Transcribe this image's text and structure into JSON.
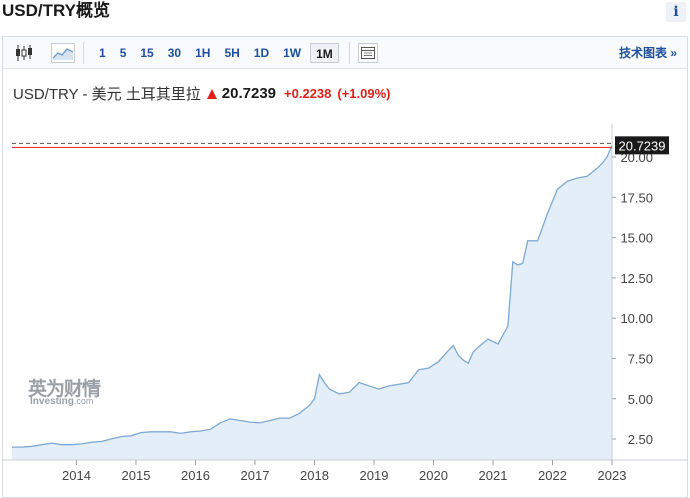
{
  "page": {
    "title": "USD/TRY概览",
    "info_label": "i"
  },
  "toolbar": {
    "timeframes": [
      "1",
      "5",
      "15",
      "30",
      "1H",
      "5H",
      "1D",
      "1W",
      "1M"
    ],
    "active_timeframe": "1M",
    "tech_chart_label": "技术图表 »"
  },
  "quote": {
    "name": "USD/TRY - 美元 土耳其里拉",
    "price": "20.7239",
    "change": "+0.2238",
    "change_pct": "(+1.09%)"
  },
  "watermark": {
    "cn": "英为财情",
    "en": "Investing",
    "en_suffix": ".com"
  },
  "colors": {
    "up": "#e0201c",
    "line": "#7fa9d3",
    "fill": "#e3eef8",
    "link": "#1f4f9c"
  },
  "chart_data": {
    "type": "area",
    "title": "",
    "xlabel": "",
    "ylabel": "",
    "x_ticks": [
      "2014",
      "2015",
      "2016",
      "2017",
      "2018",
      "2019",
      "2020",
      "2021",
      "2022",
      "2023"
    ],
    "y_ticks": [
      "2.50",
      "5.00",
      "7.50",
      "10.00",
      "12.50",
      "15.00",
      "17.50",
      "20.00"
    ],
    "ylim": [
      1.2,
      21.8
    ],
    "xlim": [
      "2013-06",
      "2023-07"
    ],
    "last_price_label": "20.7239",
    "last_price": 20.7239,
    "grid": false,
    "x": [
      "2013-06",
      "2013-08",
      "2013-10",
      "2013-12",
      "2014-02",
      "2014-04",
      "2014-06",
      "2014-08",
      "2014-10",
      "2014-12",
      "2015-02",
      "2015-04",
      "2015-06",
      "2015-08",
      "2015-10",
      "2015-12",
      "2016-02",
      "2016-04",
      "2016-06",
      "2016-08",
      "2016-10",
      "2016-12",
      "2017-02",
      "2017-04",
      "2017-06",
      "2017-08",
      "2017-10",
      "2017-12",
      "2018-02",
      "2018-04",
      "2018-06",
      "2018-07",
      "2018-08",
      "2018-09",
      "2018-10",
      "2018-12",
      "2019-02",
      "2019-04",
      "2019-06",
      "2019-08",
      "2019-10",
      "2019-12",
      "2020-02",
      "2020-04",
      "2020-06",
      "2020-08",
      "2020-10",
      "2020-11",
      "2020-12",
      "2021-01",
      "2021-02",
      "2021-03",
      "2021-04",
      "2021-06",
      "2021-08",
      "2021-10",
      "2021-11",
      "2021-12",
      "2022-01",
      "2022-02",
      "2022-04",
      "2022-06",
      "2022-08",
      "2022-10",
      "2022-12",
      "2023-02",
      "2023-04",
      "2023-05",
      "2023-06",
      "2023-07"
    ],
    "values": [
      2.0,
      2.0,
      2.05,
      2.15,
      2.25,
      2.15,
      2.15,
      2.2,
      2.3,
      2.35,
      2.5,
      2.65,
      2.7,
      2.9,
      2.95,
      2.95,
      2.95,
      2.85,
      2.95,
      3.0,
      3.1,
      3.5,
      3.75,
      3.65,
      3.55,
      3.5,
      3.65,
      3.8,
      3.8,
      4.1,
      4.6,
      5.0,
      6.5,
      6.0,
      5.6,
      5.3,
      5.4,
      6.0,
      5.8,
      5.6,
      5.8,
      5.9,
      6.0,
      6.8,
      6.9,
      7.3,
      8.0,
      8.3,
      7.7,
      7.4,
      7.2,
      7.9,
      8.2,
      8.7,
      8.4,
      9.5,
      13.5,
      13.3,
      13.4,
      14.8,
      14.8,
      16.5,
      18.0,
      18.5,
      18.7,
      18.8,
      19.3,
      19.6,
      20.0,
      20.72
    ]
  }
}
